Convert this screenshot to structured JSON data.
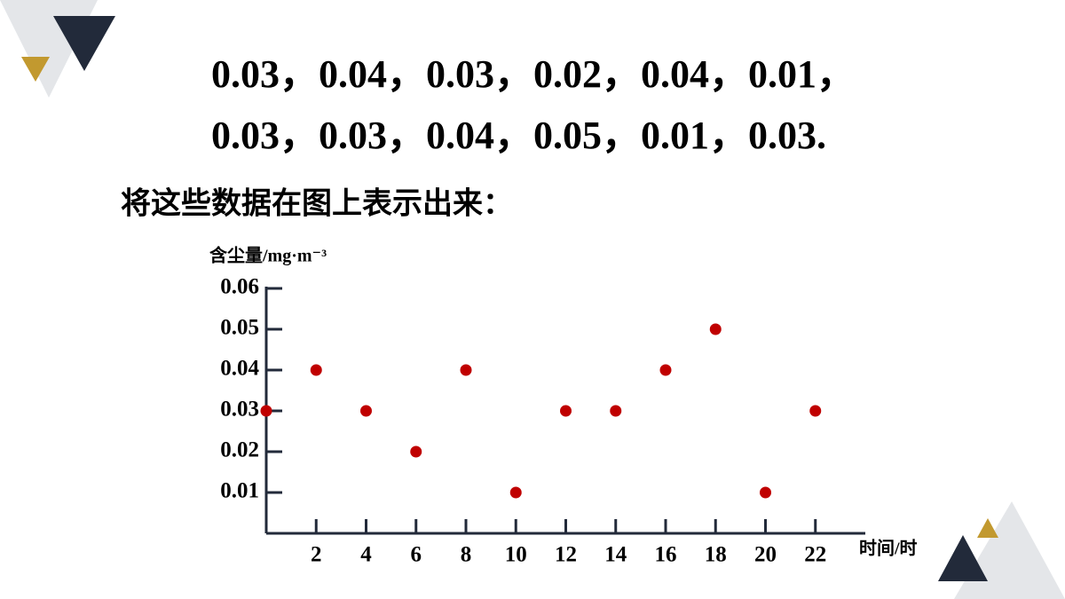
{
  "text_lines": [
    "0.03，0.04，0.03，0.02，0.04，0.01，",
    "0.03，0.03，0.04，0.05，0.01，0.03."
  ],
  "caption": "将这些数据在图上表示出来：",
  "chart_data": {
    "type": "scatter",
    "y_label": "含尘量/mg·m⁻³",
    "x_label": "时间/时",
    "x": [
      0,
      2,
      4,
      6,
      8,
      10,
      12,
      14,
      16,
      18,
      20,
      22
    ],
    "values": [
      0.03,
      0.04,
      0.03,
      0.02,
      0.04,
      0.01,
      0.03,
      0.03,
      0.04,
      0.05,
      0.01,
      0.03
    ],
    "color": "#c00000",
    "xlim": [
      0,
      24
    ],
    "xticks": [
      2,
      4,
      6,
      8,
      10,
      12,
      14,
      16,
      18,
      20,
      22
    ],
    "ylim": [
      0,
      0.06
    ],
    "yticks": [
      0.01,
      0.02,
      0.03,
      0.04,
      0.05,
      0.06
    ]
  }
}
